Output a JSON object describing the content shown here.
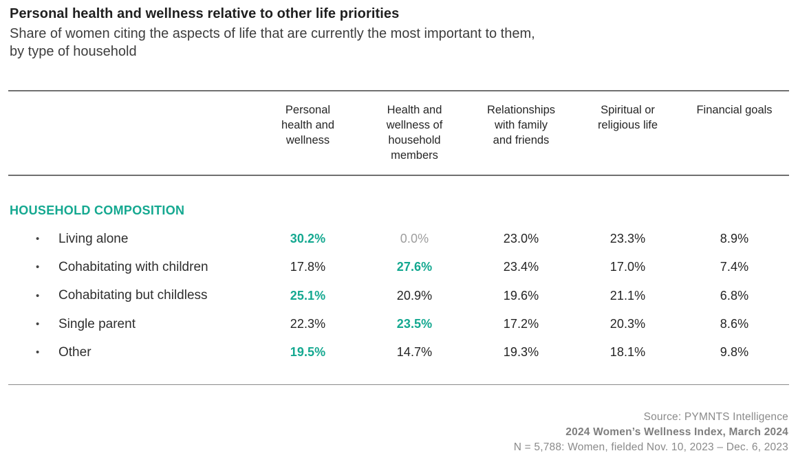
{
  "page": {
    "title": "Personal health and wellness relative to other life priorities",
    "subtitle": "Share of women citing the aspects of life that are currently the most important to them,\nby type of household"
  },
  "table": {
    "section_label": "HOUSEHOLD COMPOSITION",
    "column_headers": [
      "Personal\nhealth and\nwellness",
      "Health and\nwellness of\nhousehold\nmembers",
      "Relationships\nwith family\nand friends",
      "Spiritual or\nreligious life",
      "Financial goals"
    ],
    "bullet_glyph": "•",
    "rows": [
      {
        "label": "Living alone",
        "values": [
          {
            "text": "30.2%",
            "style": "highlight"
          },
          {
            "text": "0.0%",
            "style": "muted"
          },
          {
            "text": "23.0%",
            "style": "normal"
          },
          {
            "text": "23.3%",
            "style": "normal"
          },
          {
            "text": "8.9%",
            "style": "normal"
          }
        ]
      },
      {
        "label": "Cohabitating with children",
        "values": [
          {
            "text": "17.8%",
            "style": "normal"
          },
          {
            "text": "27.6%",
            "style": "highlight"
          },
          {
            "text": "23.4%",
            "style": "normal"
          },
          {
            "text": "17.0%",
            "style": "normal"
          },
          {
            "text": "7.4%",
            "style": "normal"
          }
        ]
      },
      {
        "label": "Cohabitating but childless",
        "values": [
          {
            "text": "25.1%",
            "style": "highlight"
          },
          {
            "text": "20.9%",
            "style": "normal"
          },
          {
            "text": "19.6%",
            "style": "normal"
          },
          {
            "text": "21.1%",
            "style": "normal"
          },
          {
            "text": "6.8%",
            "style": "normal"
          }
        ]
      },
      {
        "label": "Single parent",
        "values": [
          {
            "text": "22.3%",
            "style": "normal"
          },
          {
            "text": "23.5%",
            "style": "highlight"
          },
          {
            "text": "17.2%",
            "style": "normal"
          },
          {
            "text": "20.3%",
            "style": "normal"
          },
          {
            "text": "8.6%",
            "style": "normal"
          }
        ]
      },
      {
        "label": "Other",
        "values": [
          {
            "text": "19.5%",
            "style": "highlight"
          },
          {
            "text": "14.7%",
            "style": "normal"
          },
          {
            "text": "19.3%",
            "style": "normal"
          },
          {
            "text": "18.1%",
            "style": "normal"
          },
          {
            "text": "9.8%",
            "style": "normal"
          }
        ]
      }
    ]
  },
  "footer": {
    "source": "Source: PYMNTS Intelligence",
    "report": "2024 Women’s Wellness Index, March 2024",
    "sample": "N = 5,788: Women, fielded Nov. 10, 2023 – Dec. 6, 2023"
  },
  "colors": {
    "accent_teal": "#14a890",
    "muted_gray": "#9d9d9d",
    "text_dark": "#222222",
    "footer_gray": "#8a8a8a"
  },
  "chart_data": {
    "type": "table",
    "title": "Personal health and wellness relative to other life priorities",
    "subtitle": "Share of women citing the aspects of life that are currently the most important to them, by type of household",
    "group_label": "HOUSEHOLD COMPOSITION",
    "columns": [
      "Personal health and wellness",
      "Health and wellness of household members",
      "Relationships with family and friends",
      "Spiritual or religious life",
      "Financial goals"
    ],
    "rows": [
      {
        "label": "Living alone",
        "values": [
          30.2,
          0.0,
          23.0,
          23.3,
          8.9
        ]
      },
      {
        "label": "Cohabitating with children",
        "values": [
          17.8,
          27.6,
          23.4,
          17.0,
          7.4
        ]
      },
      {
        "label": "Cohabitating but childless",
        "values": [
          25.1,
          20.9,
          19.6,
          21.1,
          6.8
        ]
      },
      {
        "label": "Single parent",
        "values": [
          22.3,
          23.5,
          17.2,
          20.3,
          8.6
        ]
      },
      {
        "label": "Other",
        "values": [
          19.5,
          14.7,
          19.3,
          18.1,
          9.8
        ]
      }
    ],
    "units": "percent",
    "highlighted_cells": [
      {
        "row": "Living alone",
        "column": "Personal health and wellness",
        "value": 30.2
      },
      {
        "row": "Cohabitating with children",
        "column": "Health and wellness of household members",
        "value": 27.6
      },
      {
        "row": "Cohabitating but childless",
        "column": "Personal health and wellness",
        "value": 25.1
      },
      {
        "row": "Single parent",
        "column": "Health and wellness of household members",
        "value": 23.5
      },
      {
        "row": "Other",
        "column": "Personal health and wellness",
        "value": 19.5
      }
    ],
    "source": "PYMNTS Intelligence, 2024 Women’s Wellness Index, March 2024, N = 5,788: Women, fielded Nov. 10, 2023 – Dec. 6, 2023"
  }
}
